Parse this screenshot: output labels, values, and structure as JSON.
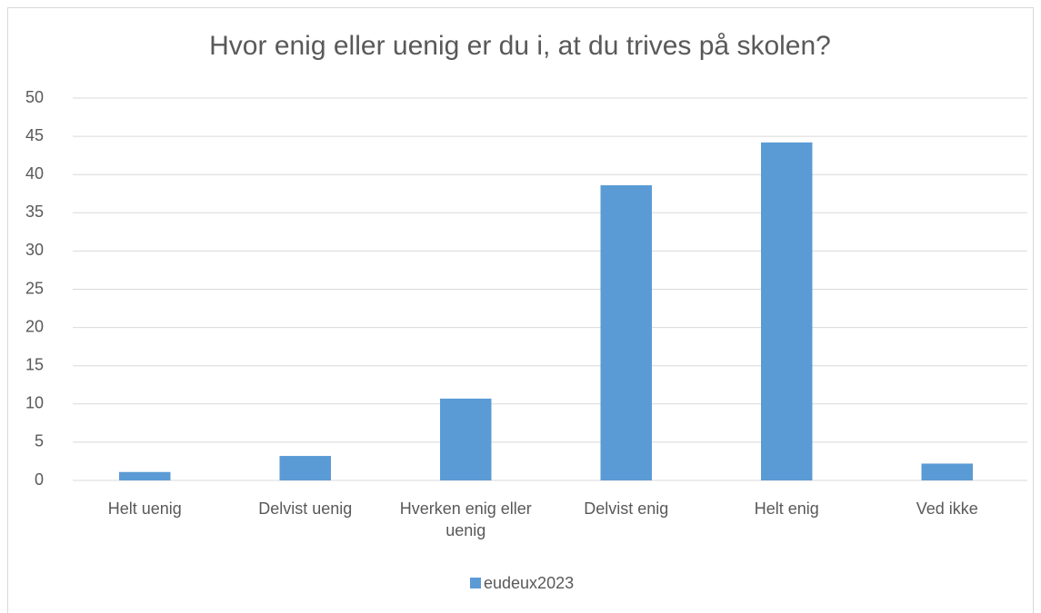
{
  "chart_data": {
    "type": "bar",
    "title": "Hvor enig eller uenig er du i, at du trives på skolen?",
    "categories": [
      "Helt uenig",
      "Delvist uenig",
      "Hverken enig eller uenig",
      "Delvist enig",
      "Helt enig",
      "Ved ikke"
    ],
    "series": [
      {
        "name": "eudeux2023",
        "color": "#5b9bd5",
        "values": [
          1.1,
          3.2,
          10.7,
          38.6,
          44.2,
          2.2
        ]
      }
    ],
    "ylim": [
      0,
      50
    ],
    "yticks": [
      0,
      5,
      10,
      15,
      20,
      25,
      30,
      35,
      40,
      45,
      50
    ],
    "grid": true,
    "legend": "bottom"
  }
}
